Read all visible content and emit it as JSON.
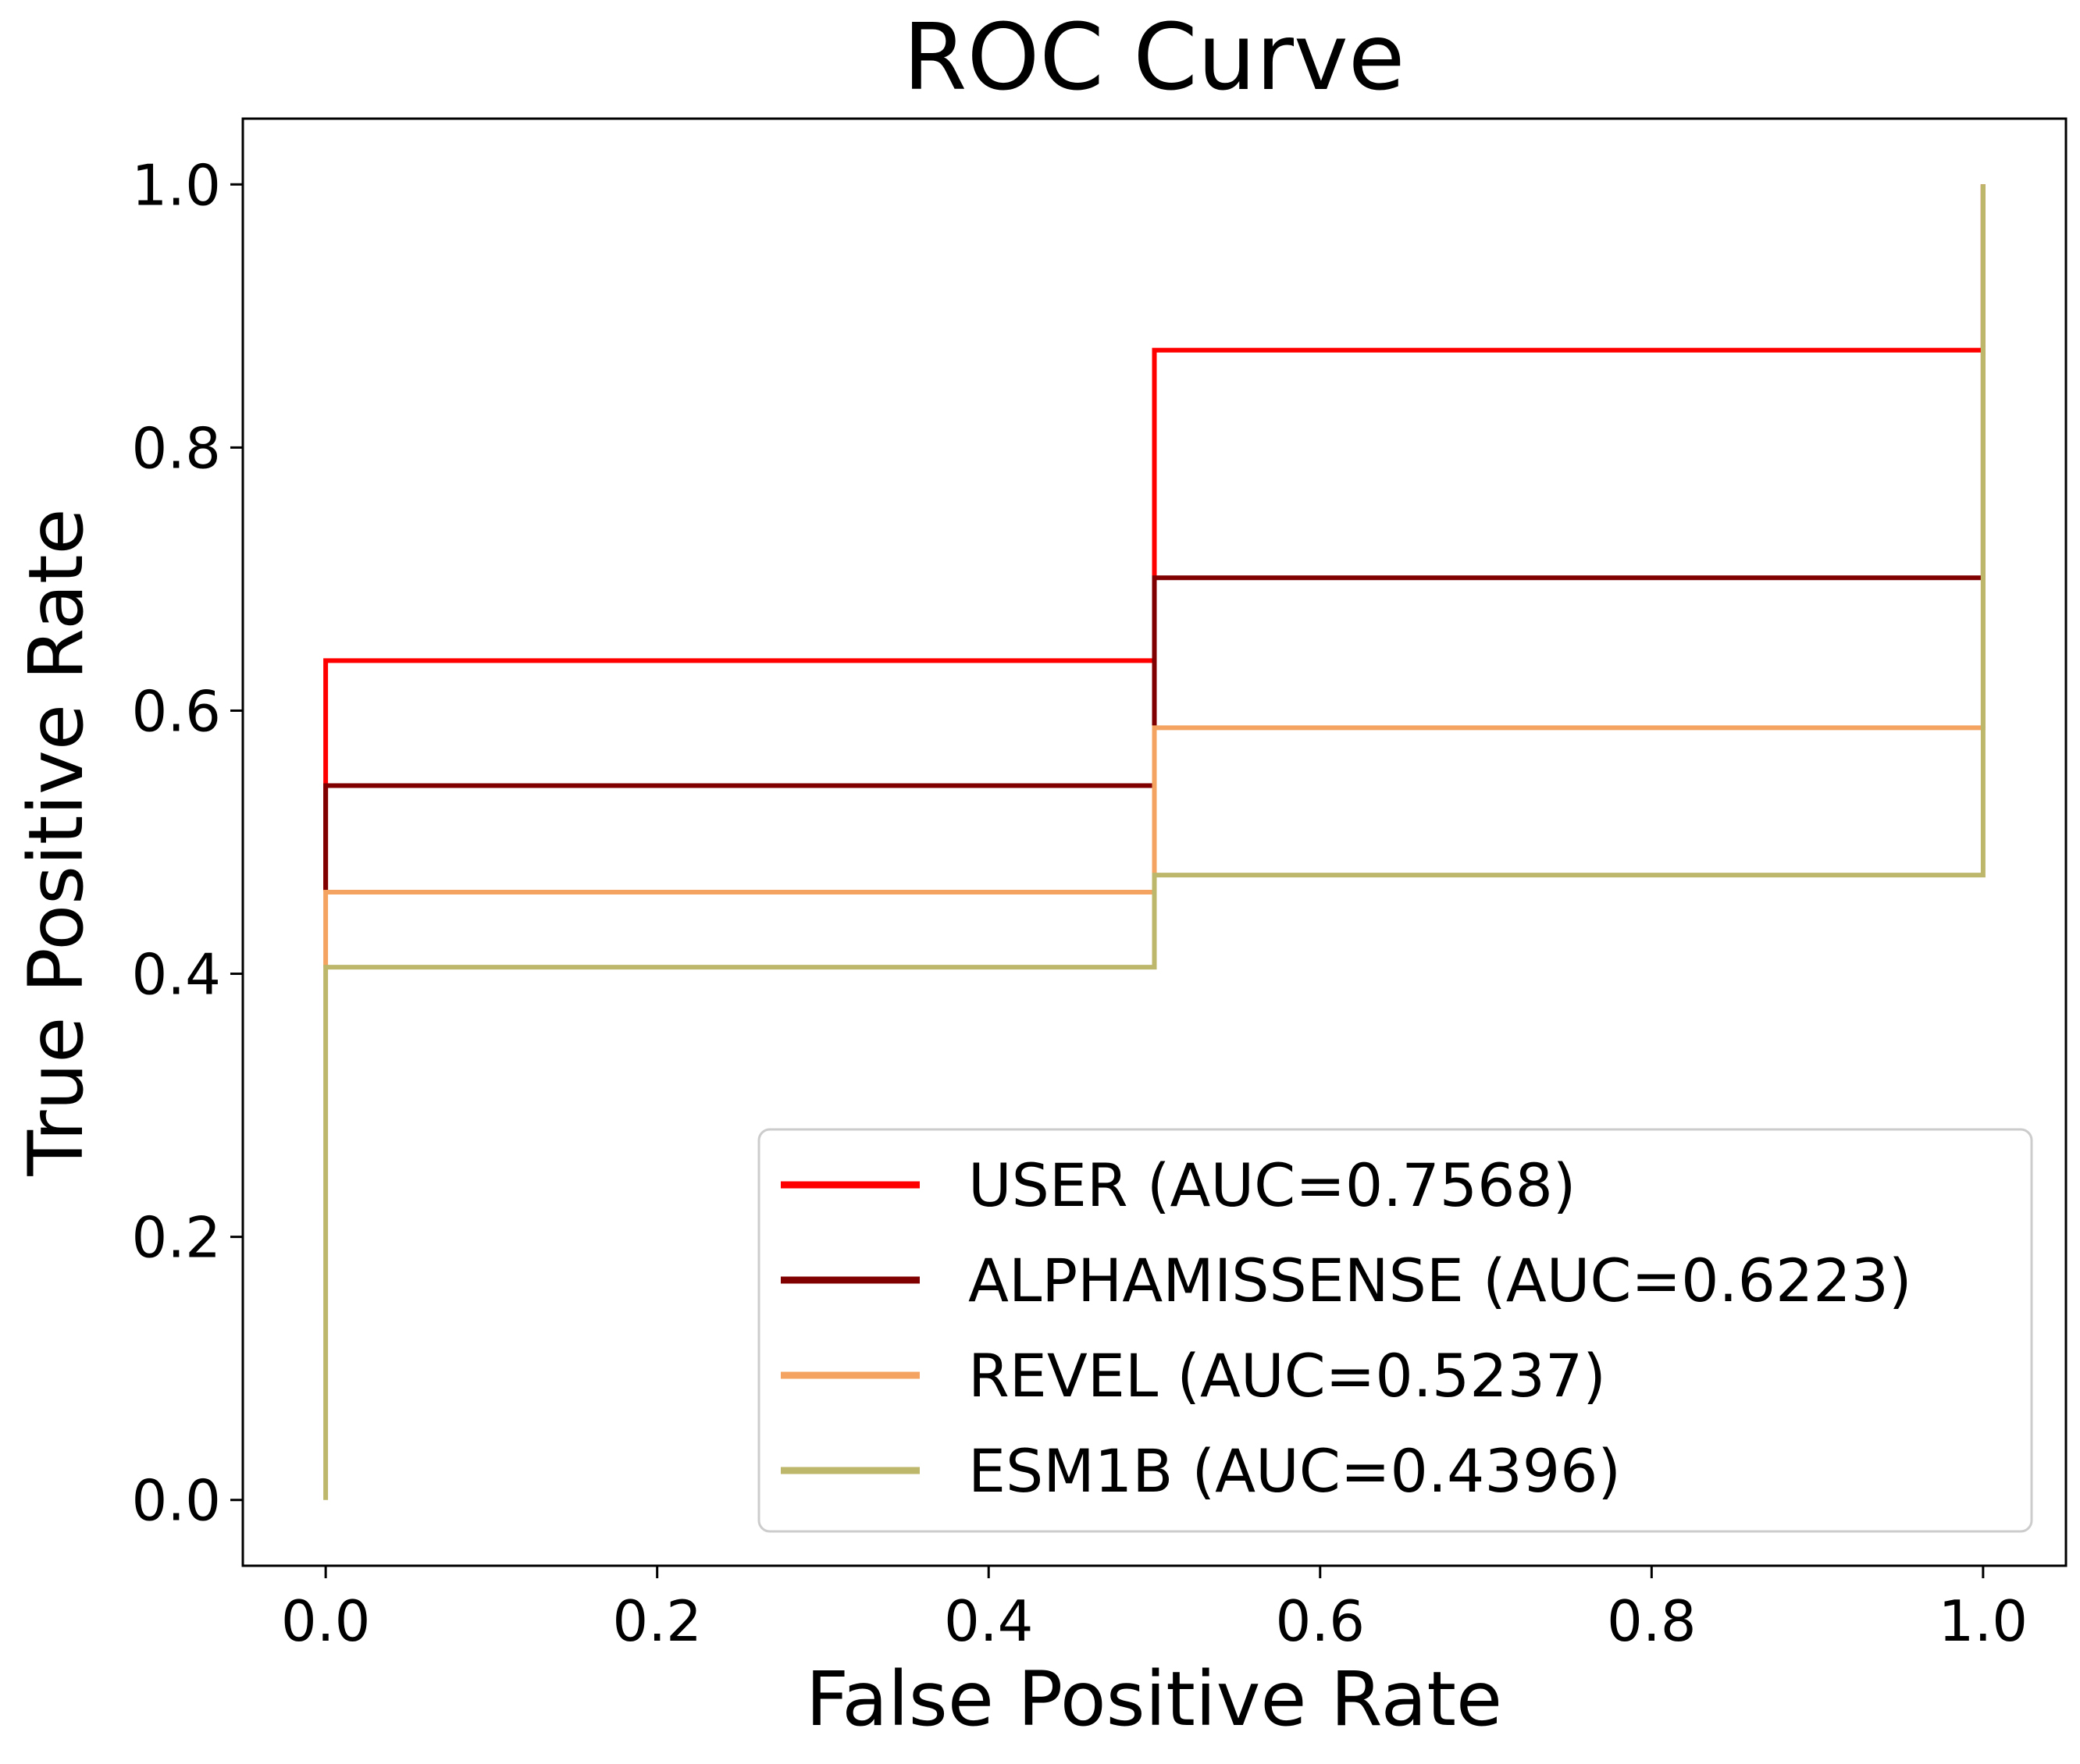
{
  "chart_data": {
    "type": "line",
    "title": "ROC Curve",
    "xlabel": "False Positive Rate",
    "ylabel": "True Positive Rate",
    "xlim": [
      -0.05,
      1.05
    ],
    "ylim": [
      -0.05,
      1.05
    ],
    "xticks": [
      0.0,
      0.2,
      0.4,
      0.6,
      0.8,
      1.0
    ],
    "yticks": [
      0.0,
      0.2,
      0.4,
      0.6,
      0.8,
      1.0
    ],
    "xtick_labels": [
      "0.0",
      "0.2",
      "0.4",
      "0.6",
      "0.8",
      "1.0"
    ],
    "ytick_labels": [
      "0.0",
      "0.2",
      "0.4",
      "0.6",
      "0.8",
      "1.0"
    ],
    "grid": false,
    "legend_position": "lower right",
    "series": [
      {
        "name": "USER (AUC=0.7568)",
        "color": "#ff0000",
        "x": [
          0.0,
          0.0,
          0.5,
          0.5,
          1.0,
          1.0
        ],
        "y": [
          0.463,
          0.638,
          0.638,
          0.874,
          0.874,
          1.0
        ]
      },
      {
        "name": "ALPHAMISSENSE (AUC=0.6223)",
        "color": "#800000",
        "x": [
          0.0,
          0.0,
          0.5,
          0.5,
          1.0,
          1.0
        ],
        "y": [
          0.463,
          0.543,
          0.543,
          0.701,
          0.701,
          1.0
        ]
      },
      {
        "name": "REVEL (AUC=0.5237)",
        "color": "#f4a460",
        "x": [
          0.0,
          0.0,
          0.5,
          0.5,
          1.0,
          1.0
        ],
        "y": [
          0.405,
          0.462,
          0.462,
          0.587,
          0.587,
          1.0
        ]
      },
      {
        "name": "ESM1B (AUC=0.4396)",
        "color": "#bdb76b",
        "x": [
          0.0,
          0.0,
          0.5,
          0.5,
          1.0,
          1.0
        ],
        "y": [
          0.0,
          0.405,
          0.405,
          0.475,
          0.475,
          1.0
        ]
      }
    ]
  }
}
